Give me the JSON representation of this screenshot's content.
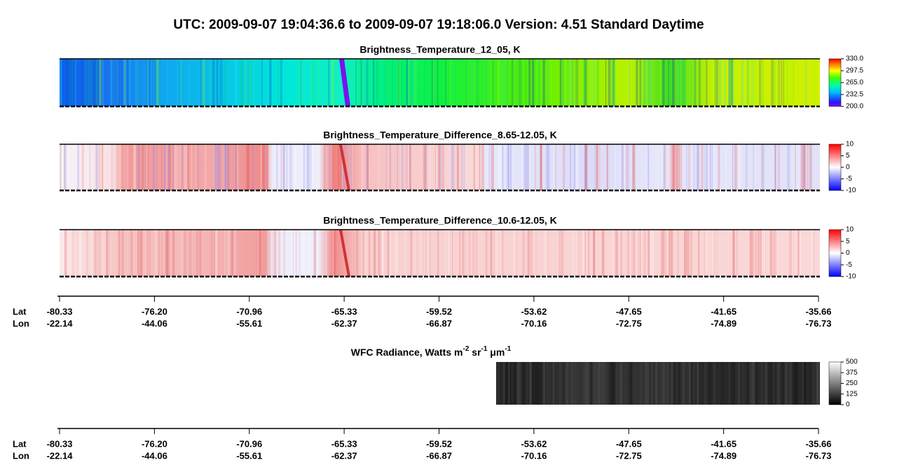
{
  "title": "UTC:  2009-09-07   19:04:36.6  to  2009-09-07   19:18:06.0    Version: 4.51  Standard Daytime",
  "panels": [
    {
      "title": "Brightness_Temperature_12_05, K",
      "colorbar_ticks": [
        "330.0",
        "297.5",
        "265.0",
        "232.5",
        "200.0"
      ]
    },
    {
      "title": "Brightness_Temperature_Difference_8.65-12.05, K",
      "colorbar_ticks": [
        "10",
        "5",
        "0",
        "-5",
        "-10"
      ]
    },
    {
      "title": "Brightness_Temperature_Difference_10.6-12.05, K",
      "colorbar_ticks": [
        "10",
        "5",
        "0",
        "-5",
        "-10"
      ]
    }
  ],
  "wfc": {
    "title_parts": [
      "WFC Radiance, Watts m",
      "-2",
      " sr",
      "-1",
      " μm",
      "-1"
    ],
    "colorbar_ticks": [
      "500",
      "375",
      "250",
      "125",
      "0"
    ]
  },
  "axes": [
    {
      "lat_label": "Lat",
      "lon_label": "Lon",
      "lat": [
        "-80.33",
        "-76.20",
        "-70.96",
        "-65.33",
        "-59.52",
        "-53.62",
        "-47.65",
        "-41.65",
        "-35.66"
      ],
      "lon": [
        "-22.14",
        "-44.06",
        "-55.61",
        "-62.37",
        "-66.87",
        "-70.16",
        "-72.75",
        "-74.89",
        "-76.73"
      ]
    },
    {
      "lat_label": "Lat",
      "lon_label": "Lon",
      "lat": [
        "-80.33",
        "-76.20",
        "-70.96",
        "-65.33",
        "-59.52",
        "-53.62",
        "-47.65",
        "-41.65",
        "-35.66"
      ],
      "lon": [
        "-22.14",
        "-44.06",
        "-55.61",
        "-62.37",
        "-66.87",
        "-70.16",
        "-72.75",
        "-74.89",
        "-76.73"
      ]
    }
  ]
}
